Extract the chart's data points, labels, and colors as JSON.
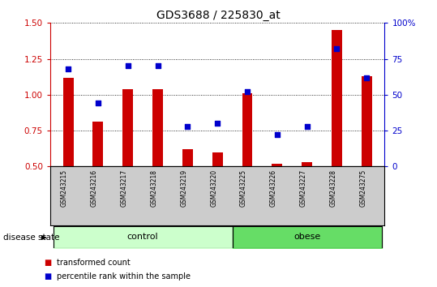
{
  "title": "GDS3688 / 225830_at",
  "samples": [
    "GSM243215",
    "GSM243216",
    "GSM243217",
    "GSM243218",
    "GSM243219",
    "GSM243220",
    "GSM243225",
    "GSM243226",
    "GSM243227",
    "GSM243228",
    "GSM243275"
  ],
  "transformed_count": [
    1.12,
    0.81,
    1.04,
    1.04,
    0.62,
    0.6,
    1.01,
    0.52,
    0.53,
    1.45,
    1.13
  ],
  "percentile_rank": [
    68,
    44,
    70,
    70,
    28,
    30,
    52,
    22,
    28,
    82,
    62
  ],
  "bar_color": "#cc0000",
  "dot_color": "#0000cc",
  "ylim_left": [
    0.5,
    1.5
  ],
  "ylim_right": [
    0,
    100
  ],
  "yticks_left": [
    0.5,
    0.75,
    1.0,
    1.25,
    1.5
  ],
  "yticks_right": [
    0,
    25,
    50,
    75,
    100
  ],
  "ytick_labels_right": [
    "0",
    "25",
    "50",
    "75",
    "100%"
  ],
  "control_indices": [
    0,
    1,
    2,
    3,
    4,
    5
  ],
  "obese_indices": [
    6,
    7,
    8,
    9,
    10
  ],
  "control_label": "control",
  "obese_label": "obese",
  "disease_state_label": "disease state",
  "legend_bar_label": "transformed count",
  "legend_dot_label": "percentile rank within the sample",
  "control_color": "#ccffcc",
  "obese_color": "#66dd66",
  "label_bg_color": "#cccccc",
  "bar_width": 0.35,
  "dot_size": 18
}
